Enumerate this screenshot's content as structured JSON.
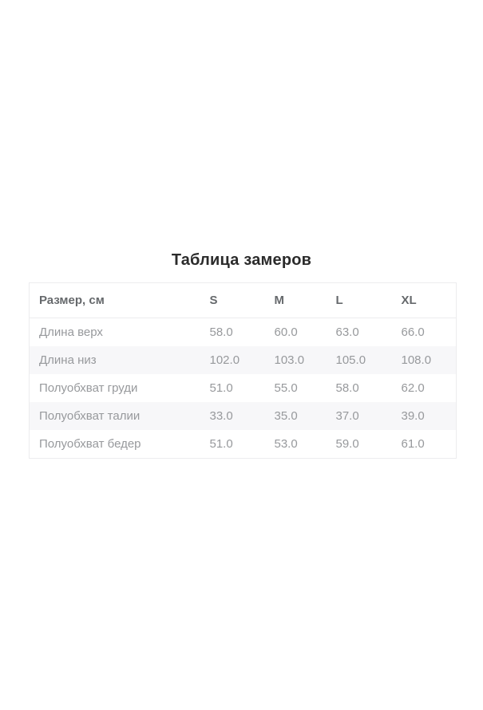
{
  "page": {
    "title": "Таблица замеров"
  },
  "size_table": {
    "columns": [
      "Размер, см",
      "S",
      "M",
      "L",
      "XL"
    ],
    "rows": [
      {
        "label": "Длина верх",
        "values": [
          "58.0",
          "60.0",
          "63.0",
          "66.0"
        ]
      },
      {
        "label": "Длина низ",
        "values": [
          "102.0",
          "103.0",
          "105.0",
          "108.0"
        ]
      },
      {
        "label": "Полуобхват груди",
        "values": [
          "51.0",
          "55.0",
          "58.0",
          "62.0"
        ]
      },
      {
        "label": "Полуобхват талии",
        "values": [
          "33.0",
          "35.0",
          "37.0",
          "39.0"
        ]
      },
      {
        "label": "Полуобхват бедер",
        "values": [
          "51.0",
          "53.0",
          "59.0",
          "61.0"
        ]
      }
    ],
    "colors": {
      "title_text": "#2b2b2b",
      "header_text": "#66696c",
      "body_text": "#97999c",
      "row_alt_background": "#f7f7f9",
      "border": "#ececee"
    }
  }
}
